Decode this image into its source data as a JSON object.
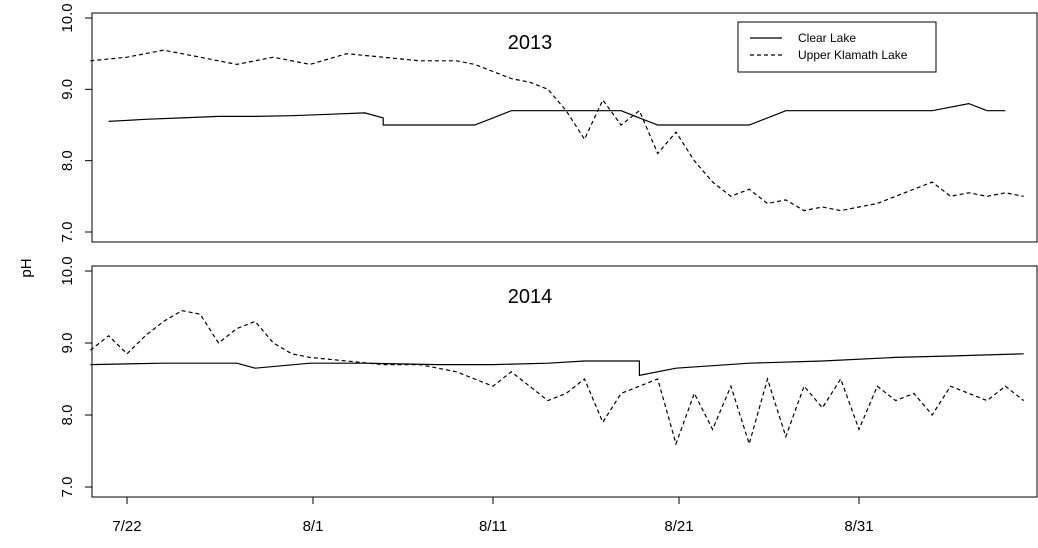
{
  "chart_data": {
    "type": "line",
    "ylabel": "pH",
    "xlim": [
      "7/20",
      "9/9"
    ],
    "x_ticks": [
      "7/22",
      "8/1",
      "8/11",
      "8/21",
      "8/31"
    ],
    "x_tick_dates": [
      "2000-07-22",
      "2000-08-01",
      "2000-08-11",
      "2000-08-21",
      "2000-08-31"
    ],
    "legend": {
      "position": "top-right",
      "entries": [
        {
          "label": "Clear Lake",
          "style": "solid"
        },
        {
          "label": "Upper Klamath Lake",
          "style": "dashed"
        }
      ]
    },
    "panels": [
      {
        "title": "2013",
        "ylim": [
          6.9,
          10.0
        ],
        "y_ticks": [
          "7.0",
          "8.0",
          "9.0",
          "10.0"
        ],
        "series": [
          {
            "name": "Clear Lake",
            "style": "solid",
            "points": [
              [
                "07-21",
                8.55
              ],
              [
                "07-23",
                8.58
              ],
              [
                "07-25",
                8.6
              ],
              [
                "07-27",
                8.62
              ],
              [
                "07-29",
                8.62
              ],
              [
                "07-31",
                8.63
              ],
              [
                "08-02",
                8.65
              ],
              [
                "08-04",
                8.67
              ],
              [
                "08-05",
                8.6
              ],
              [
                "08-05",
                8.5
              ],
              [
                "08-09",
                8.5
              ],
              [
                "08-10",
                8.5
              ],
              [
                "08-11",
                8.6
              ],
              [
                "08-12",
                8.7
              ],
              [
                "08-15",
                8.7
              ],
              [
                "08-18",
                8.7
              ],
              [
                "08-19",
                8.6
              ],
              [
                "08-20",
                8.5
              ],
              [
                "08-21",
                8.5
              ],
              [
                "08-22",
                8.5
              ],
              [
                "08-23",
                8.5
              ],
              [
                "08-25",
                8.5
              ],
              [
                "08-26",
                8.6
              ],
              [
                "08-27",
                8.7
              ],
              [
                "08-31",
                8.7
              ],
              [
                "09-04",
                8.7
              ],
              [
                "09-06",
                8.8
              ],
              [
                "09-07",
                8.7
              ],
              [
                "09-08",
                8.7
              ]
            ]
          },
          {
            "name": "Upper Klamath Lake",
            "style": "dashed",
            "points": [
              [
                "07-20",
                9.4
              ],
              [
                "07-22",
                9.45
              ],
              [
                "07-24",
                9.55
              ],
              [
                "07-26",
                9.45
              ],
              [
                "07-28",
                9.35
              ],
              [
                "07-30",
                9.45
              ],
              [
                "08-01",
                9.35
              ],
              [
                "08-03",
                9.5
              ],
              [
                "08-05",
                9.45
              ],
              [
                "08-07",
                9.4
              ],
              [
                "08-09",
                9.4
              ],
              [
                "08-10",
                9.35
              ],
              [
                "08-11",
                9.25
              ],
              [
                "08-12",
                9.15
              ],
              [
                "08-13",
                9.1
              ],
              [
                "08-14",
                9.0
              ],
              [
                "08-15",
                8.7
              ],
              [
                "08-16",
                8.3
              ],
              [
                "08-17",
                8.85
              ],
              [
                "08-18",
                8.5
              ],
              [
                "08-19",
                8.7
              ],
              [
                "08-20",
                8.1
              ],
              [
                "08-21",
                8.4
              ],
              [
                "08-22",
                8.0
              ],
              [
                "08-23",
                7.7
              ],
              [
                "08-24",
                7.5
              ],
              [
                "08-25",
                7.6
              ],
              [
                "08-26",
                7.4
              ],
              [
                "08-27",
                7.45
              ],
              [
                "08-28",
                7.3
              ],
              [
                "08-29",
                7.35
              ],
              [
                "08-30",
                7.3
              ],
              [
                "08-31",
                7.35
              ],
              [
                "09-01",
                7.4
              ],
              [
                "09-02",
                7.5
              ],
              [
                "09-03",
                7.6
              ],
              [
                "09-04",
                7.7
              ],
              [
                "09-05",
                7.5
              ],
              [
                "09-06",
                7.55
              ],
              [
                "09-07",
                7.5
              ],
              [
                "09-08",
                7.55
              ],
              [
                "09-09",
                7.5
              ]
            ]
          }
        ]
      },
      {
        "title": "2014",
        "ylim": [
          6.9,
          10.0
        ],
        "y_ticks": [
          "7.0",
          "8.0",
          "9.0",
          "10.0"
        ],
        "series": [
          {
            "name": "Clear Lake",
            "style": "solid",
            "points": [
              [
                "07-20",
                8.7
              ],
              [
                "07-24",
                8.72
              ],
              [
                "07-28",
                8.72
              ],
              [
                "07-29",
                8.65
              ],
              [
                "08-01",
                8.72
              ],
              [
                "08-04",
                8.72
              ],
              [
                "08-08",
                8.7
              ],
              [
                "08-11",
                8.7
              ],
              [
                "08-14",
                8.72
              ],
              [
                "08-16",
                8.75
              ],
              [
                "08-19",
                8.75
              ],
              [
                "08-19",
                8.55
              ],
              [
                "08-21",
                8.65
              ],
              [
                "08-25",
                8.72
              ],
              [
                "08-29",
                8.75
              ],
              [
                "09-02",
                8.8
              ],
              [
                "09-05",
                8.82
              ],
              [
                "09-09",
                8.85
              ]
            ]
          },
          {
            "name": "Upper Klamath Lake",
            "style": "dashed",
            "points": [
              [
                "07-20",
                8.9
              ],
              [
                "07-21",
                9.1
              ],
              [
                "07-22",
                8.85
              ],
              [
                "07-23",
                9.1
              ],
              [
                "07-24",
                9.3
              ],
              [
                "07-25",
                9.45
              ],
              [
                "07-26",
                9.4
              ],
              [
                "07-27",
                9.0
              ],
              [
                "07-28",
                9.2
              ],
              [
                "07-29",
                9.3
              ],
              [
                "07-30",
                9.0
              ],
              [
                "07-31",
                8.85
              ],
              [
                "08-01",
                8.8
              ],
              [
                "08-03",
                8.75
              ],
              [
                "08-05",
                8.7
              ],
              [
                "08-07",
                8.7
              ],
              [
                "08-09",
                8.6
              ],
              [
                "08-10",
                8.5
              ],
              [
                "08-11",
                8.4
              ],
              [
                "08-12",
                8.6
              ],
              [
                "08-13",
                8.4
              ],
              [
                "08-14",
                8.2
              ],
              [
                "08-15",
                8.3
              ],
              [
                "08-16",
                8.5
              ],
              [
                "08-17",
                7.9
              ],
              [
                "08-18",
                8.3
              ],
              [
                "08-19",
                8.4
              ],
              [
                "08-20",
                8.5
              ],
              [
                "08-21",
                7.6
              ],
              [
                "08-22",
                8.3
              ],
              [
                "08-23",
                7.8
              ],
              [
                "08-24",
                8.4
              ],
              [
                "08-25",
                7.6
              ],
              [
                "08-26",
                8.5
              ],
              [
                "08-27",
                7.7
              ],
              [
                "08-28",
                8.4
              ],
              [
                "08-29",
                8.1
              ],
              [
                "08-30",
                8.5
              ],
              [
                "08-31",
                7.8
              ],
              [
                "09-01",
                8.4
              ],
              [
                "09-02",
                8.2
              ],
              [
                "09-03",
                8.3
              ],
              [
                "09-04",
                8.0
              ],
              [
                "09-05",
                8.4
              ],
              [
                "09-06",
                8.3
              ],
              [
                "09-07",
                8.2
              ],
              [
                "09-08",
                8.4
              ],
              [
                "09-09",
                8.2
              ]
            ]
          }
        ]
      }
    ]
  }
}
